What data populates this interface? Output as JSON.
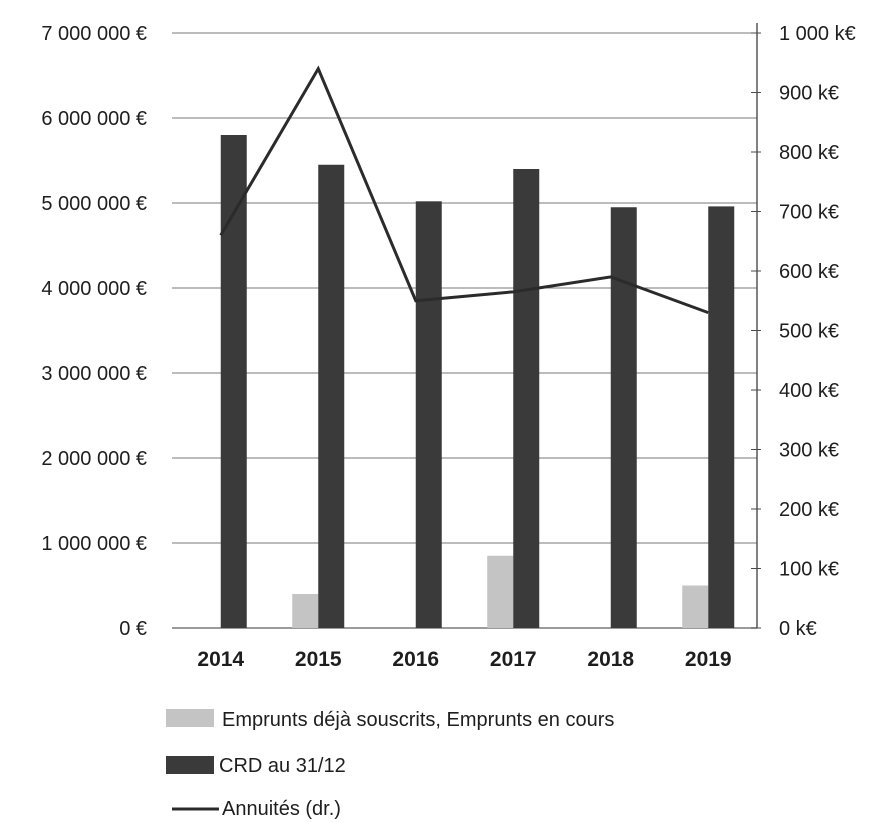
{
  "chart_data": {
    "type": "bar",
    "categories": [
      "2014",
      "2015",
      "2016",
      "2017",
      "2018",
      "2019"
    ],
    "y_left": {
      "ylim": [
        0,
        7000000
      ],
      "ticks": [
        0,
        1000000,
        2000000,
        3000000,
        4000000,
        5000000,
        6000000,
        7000000
      ],
      "tick_labels": [
        "0 €",
        "1 000 000 €",
        "2 000 000 €",
        "3 000 000 €",
        "4 000 000 €",
        "5 000 000 €",
        "6 000 000 €",
        "7 000 000 €"
      ]
    },
    "y_right": {
      "ylim": [
        0,
        1000
      ],
      "unit": "k€",
      "ticks": [
        0,
        100,
        200,
        300,
        400,
        500,
        600,
        700,
        800,
        900,
        1000
      ],
      "tick_labels": [
        "0 k€",
        "100 k€",
        "200 k€",
        "300 k€",
        "400 k€",
        "500 k€",
        "600 k€",
        "700 k€",
        "800 k€",
        "900 k€",
        "1 000 k€"
      ]
    },
    "series": [
      {
        "name": "Emprunts déjà souscrits, Emprunts en cours",
        "kind": "bar",
        "axis": "left",
        "color": "#c4c4c4",
        "values": [
          0,
          400000,
          0,
          850000,
          0,
          500000
        ]
      },
      {
        "name": "CRD au 31/12",
        "kind": "bar",
        "axis": "left",
        "color": "#3a3a3a",
        "values": [
          5800000,
          5450000,
          5020000,
          5400000,
          4950000,
          4960000
        ]
      },
      {
        "name": "Annuités (dr.)",
        "kind": "line",
        "axis": "right",
        "color": "#2b2b2b",
        "values": [
          660,
          940,
          550,
          565,
          590,
          530
        ]
      }
    ],
    "grid": true,
    "legend_position": "bottom-left"
  }
}
